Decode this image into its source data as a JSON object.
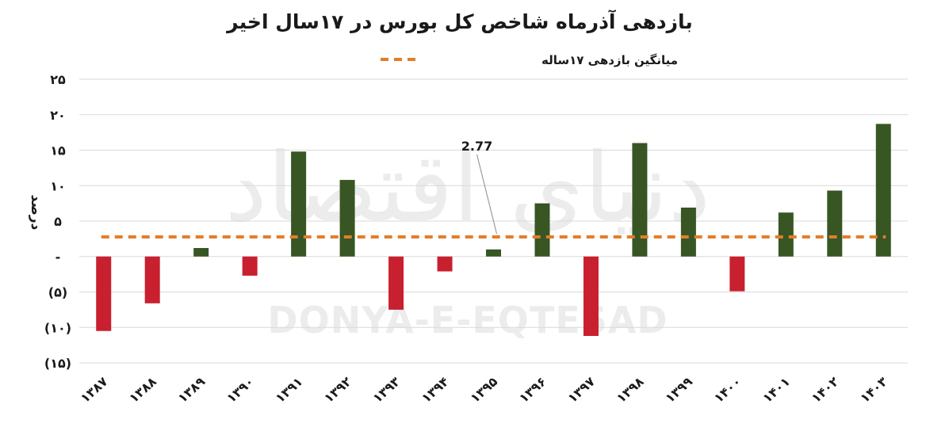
{
  "chart_data": {
    "type": "bar",
    "title": "بازدهی آذرماه شاخص کل بورس در ۱۷سال اخیر",
    "ylabel": "درصد",
    "xlabel": "",
    "categories": [
      "۱۳۸۷",
      "۱۳۸۸",
      "۱۳۸۹",
      "۱۳۹۰",
      "۱۳۹۱",
      "۱۳۹۲",
      "۱۳۹۳",
      "۱۳۹۴",
      "۱۳۹۵",
      "۱۳۹۶",
      "۱۳۹۷",
      "۱۳۹۸",
      "۱۳۹۹",
      "۱۴۰۰",
      "۱۴۰۱",
      "۱۴۰۲",
      "۱۴۰۳"
    ],
    "values": [
      -10.5,
      -6.6,
      1.2,
      -2.7,
      14.8,
      10.8,
      -7.5,
      -2.1,
      1.0,
      7.5,
      -11.2,
      16.0,
      6.9,
      -4.9,
      6.2,
      9.3,
      18.7
    ],
    "ylim": [
      -15,
      25
    ],
    "yticks": [
      25,
      20,
      15,
      10,
      5,
      0,
      -5,
      -10,
      -15
    ],
    "ytick_labels": [
      "۲۵",
      "۲۰",
      "۱۵",
      "۱۰",
      "۵",
      "-",
      "(۵)",
      "(۱۰)",
      "(۱۵)"
    ],
    "average": {
      "name": "میانگین بازدهی ۱۷ساله",
      "value": 2.77,
      "label": "2.77"
    },
    "colors": {
      "positive": "#375623",
      "negative": "#c8202f",
      "average": "#e27d2b",
      "grid": "#d9d9d9"
    },
    "grid": true,
    "legend_position": "top-center"
  },
  "watermark": {
    "persian": "دنیای اقتصاد",
    "latin": "DONYA-E-EQTESAD"
  }
}
